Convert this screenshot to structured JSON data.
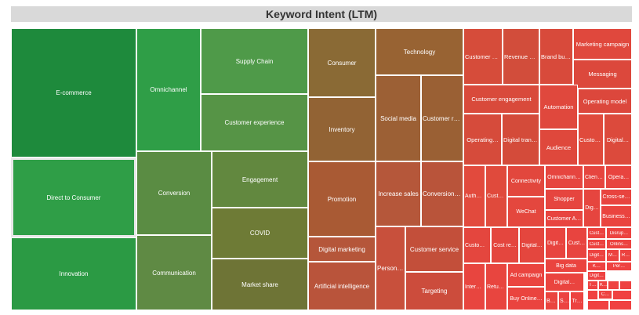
{
  "chart_data": {
    "type": "treemap",
    "title": "Keyword Intent (LTM)",
    "tiles": [
      {
        "label": "E-commerce",
        "value": 3.0,
        "color": "#1e8a3c"
      },
      {
        "label": "Direct to Consumer",
        "value": 1.7,
        "color": "#2f9e47"
      },
      {
        "label": "Innovation",
        "value": 1.6,
        "color": "#2b9a44"
      },
      {
        "label": "Omnichannel",
        "value": 2.0,
        "color": "#2f9e47"
      },
      {
        "label": "Supply Chain",
        "value": 1.3,
        "color": "#4f9a49"
      },
      {
        "label": "Customer experience",
        "value": 1.2,
        "color": "#569446"
      },
      {
        "label": "Conversion",
        "value": 1.1,
        "color": "#5a8c43"
      },
      {
        "label": "Communication",
        "value": 1.05,
        "color": "#5f8a44"
      },
      {
        "label": "Engagement",
        "value": 0.85,
        "color": "#62883f"
      },
      {
        "label": "COVID",
        "value": 0.7,
        "color": "#6e7b36"
      },
      {
        "label": "Market share",
        "value": 0.7,
        "color": "#6e7436"
      },
      {
        "label": "Consumer",
        "value": 0.85,
        "color": "#8a6a35"
      },
      {
        "label": "Inventory",
        "value": 0.95,
        "color": "#926334"
      },
      {
        "label": "Promotion",
        "value": 0.85,
        "color": "#a95a34"
      },
      {
        "label": "Digital marketing",
        "value": 0.75,
        "color": "#b5563a"
      },
      {
        "label": "Artificial intelligence",
        "value": 0.72,
        "color": "#b9543b"
      },
      {
        "label": "Technology",
        "value": 0.72,
        "color": "#986333"
      },
      {
        "label": "Social media",
        "value": 0.75,
        "color": "#9c6035"
      },
      {
        "label": "Customer rel…",
        "value": 0.7,
        "color": "#9a6034"
      },
      {
        "label": "Increase sales",
        "value": 0.6,
        "color": "#b5573a"
      },
      {
        "label": "Conversion r…",
        "value": 0.58,
        "color": "#b9543a"
      },
      {
        "label": "Personali…",
        "value": 0.55,
        "color": "#c8503c"
      },
      {
        "label": "Customer service",
        "value": 0.55,
        "color": "#c34f3a"
      },
      {
        "label": "Targeting",
        "value": 0.4,
        "color": "#cc4c3c"
      },
      {
        "label": "Customer a…",
        "value": 0.45,
        "color": "#d64c3a"
      },
      {
        "label": "Revenue gr…",
        "value": 0.43,
        "color": "#d24d3b"
      },
      {
        "label": "Brand buil…",
        "value": 0.4,
        "color": "#d84a3b"
      },
      {
        "label": "Marketing campaign",
        "value": 0.3,
        "color": "#e0483d"
      },
      {
        "label": "Messaging",
        "value": 0.26,
        "color": "#dc483c"
      },
      {
        "label": "Customer engagement",
        "value": 0.3,
        "color": "#d94a3b"
      },
      {
        "label": "Automation",
        "value": 0.25,
        "color": "#e0483d"
      },
      {
        "label": "Operating model",
        "value": 0.2,
        "color": "#dc473c"
      },
      {
        "label": "Operating…",
        "value": 0.32,
        "color": "#d64b3b"
      },
      {
        "label": "Digital trans…",
        "value": 0.33,
        "color": "#d44b3a"
      },
      {
        "label": "Audience",
        "value": 0.27,
        "color": "#df483c"
      },
      {
        "label": "Custom…",
        "value": 0.18,
        "color": "#e04a3c"
      },
      {
        "label": "Digital…",
        "value": 0.17,
        "color": "#dc4a3c"
      },
      {
        "label": "Autho…",
        "value": 0.15,
        "color": "#e24a3d"
      },
      {
        "label": "Custo…",
        "value": 0.14,
        "color": "#e04a3c"
      },
      {
        "label": "Connectivity",
        "value": 0.18,
        "color": "#e2473d"
      },
      {
        "label": "WeChat",
        "value": 0.2,
        "color": "#e4473e"
      },
      {
        "label": "Omnichann…",
        "value": 0.12,
        "color": "#e6453f"
      },
      {
        "label": "Client…",
        "value": 0.07,
        "color": "#e6453f"
      },
      {
        "label": "Opera…",
        "value": 0.06,
        "color": "#e8443f"
      },
      {
        "label": "Shopper",
        "value": 0.1,
        "color": "#e6453f"
      },
      {
        "label": "Customer A…",
        "value": 0.1,
        "color": "#e8443f"
      },
      {
        "label": "Dig…",
        "value": 0.06,
        "color": "#e6453f"
      },
      {
        "label": "Cross-se…",
        "value": 0.06,
        "color": "#e8443f"
      },
      {
        "label": "Business…",
        "value": 0.05,
        "color": "#ea443f"
      },
      {
        "label": "Custom…",
        "value": 0.13,
        "color": "#e4463e"
      },
      {
        "label": "Cost re…",
        "value": 0.12,
        "color": "#e4463e"
      },
      {
        "label": "Digital…",
        "value": 0.11,
        "color": "#e4463e"
      },
      {
        "label": "Interm…",
        "value": 0.11,
        "color": "#e8453f"
      },
      {
        "label": "Retur…",
        "value": 0.09,
        "color": "#e8453f"
      },
      {
        "label": "Ad campaign",
        "value": 0.1,
        "color": "#ea443f"
      },
      {
        "label": "Buy Online…",
        "value": 0.1,
        "color": "#ea443f"
      },
      {
        "label": "Digit…",
        "value": 0.08,
        "color": "#e8443f"
      },
      {
        "label": "Cust…",
        "value": 0.06,
        "color": "#e8443f"
      },
      {
        "label": "Big data",
        "value": 0.07,
        "color": "#ea443f"
      },
      {
        "label": "Digital…",
        "value": 0.06,
        "color": "#ea443f"
      },
      {
        "label": "Br…",
        "value": 0.05,
        "color": "#ea443f"
      },
      {
        "label": "So…",
        "value": 0.04,
        "color": "#ec4340"
      },
      {
        "label": "Tr…",
        "value": 0.04,
        "color": "#ec4340"
      },
      {
        "label": "Cust…",
        "value": 0.03,
        "color": "#ec4340"
      },
      {
        "label": "Disrup…",
        "value": 0.03,
        "color": "#ec4340"
      },
      {
        "label": "Cust…",
        "value": 0.025,
        "color": "#ec4340"
      },
      {
        "label": "Onlins…",
        "value": 0.025,
        "color": "#ec4340"
      },
      {
        "label": "Digit…",
        "value": 0.02,
        "color": "#ec4340"
      },
      {
        "label": "M…",
        "value": 0.02,
        "color": "#ec4340"
      },
      {
        "label": "R…",
        "value": 0.02,
        "color": "#ec4340"
      },
      {
        "label": "K…",
        "value": 0.015,
        "color": "#ee4241"
      },
      {
        "label": "Per…",
        "value": 0.015,
        "color": "#ee4241"
      },
      {
        "label": "Digit…",
        "value": 0.015,
        "color": "#ee4241"
      },
      {
        "label": "T…",
        "value": 0.01,
        "color": "#ee4241"
      },
      {
        "label": "Kn…",
        "value": 0.01,
        "color": "#ee4241"
      },
      {
        "label": "C…",
        "value": 0.01,
        "color": "#ee4241"
      },
      {
        "label": "",
        "value": 0.008,
        "color": "#ee4241"
      },
      {
        "label": "",
        "value": 0.008,
        "color": "#ee4241"
      },
      {
        "label": "",
        "value": 0.006,
        "color": "#f04141"
      },
      {
        "label": "",
        "value": 0.006,
        "color": "#f04141"
      },
      {
        "label": "",
        "value": 0.005,
        "color": "#f04141"
      },
      {
        "label": "",
        "value": 0.005,
        "color": "#f04141"
      }
    ]
  }
}
